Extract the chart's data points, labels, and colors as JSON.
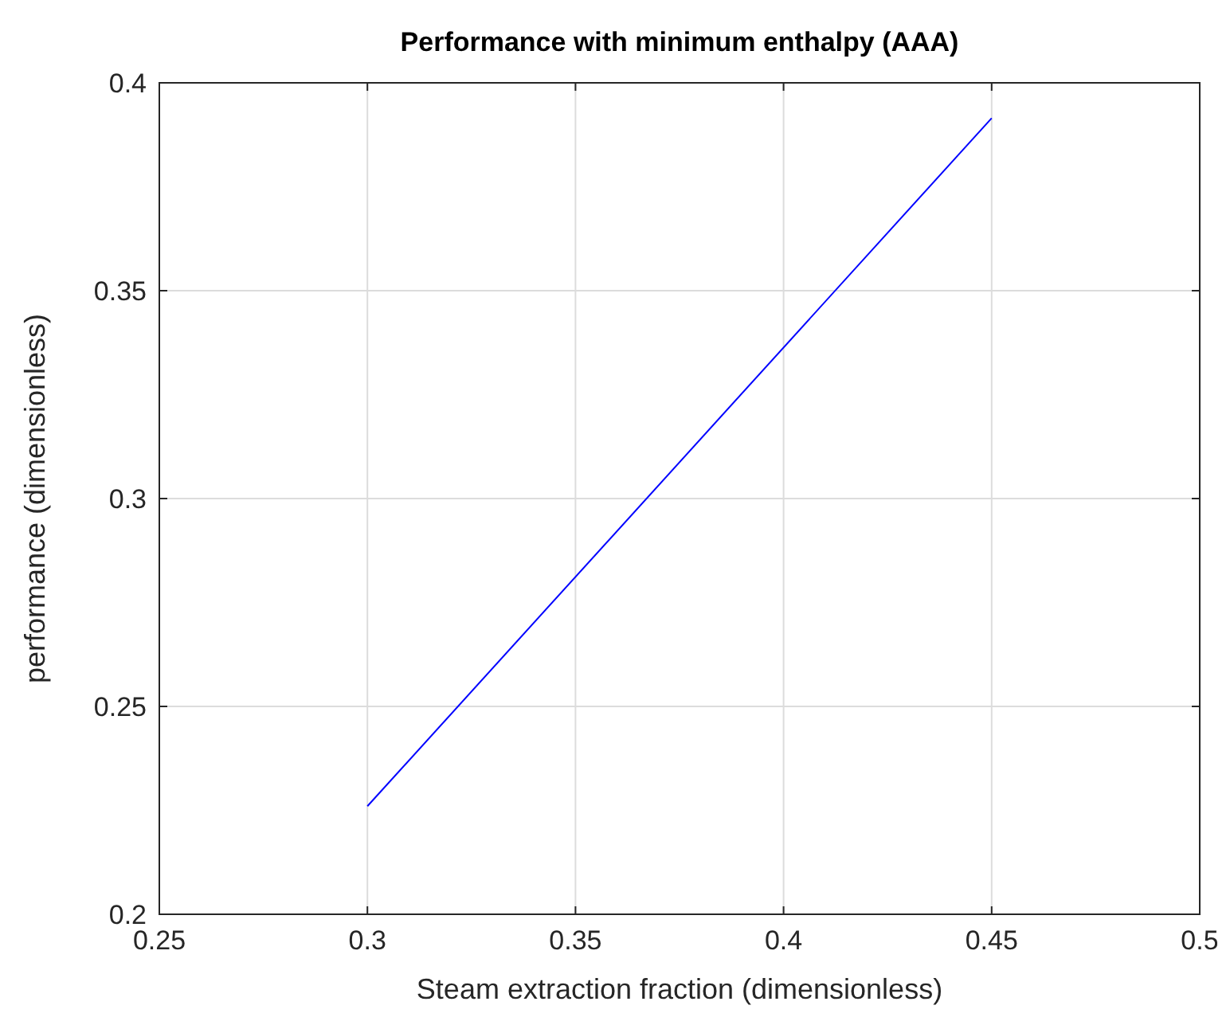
{
  "chart_data": {
    "type": "line",
    "title": "Performance with minimum enthalpy (AAA)",
    "xlabel": "Steam extraction fraction (dimensionless)",
    "ylabel": "performance (dimensionless)",
    "x": [
      0.3,
      0.45
    ],
    "series": [
      {
        "color": "#0000ff",
        "values": [
          0.226,
          0.3915
        ]
      }
    ],
    "xlim": [
      0.25,
      0.5
    ],
    "xticks": [
      0.25,
      0.3,
      0.35,
      0.4,
      0.45,
      0.5
    ],
    "ylim": [
      0.2,
      0.4
    ],
    "yticks": [
      0.2,
      0.25,
      0.3,
      0.35,
      0.4
    ],
    "grid": true
  }
}
